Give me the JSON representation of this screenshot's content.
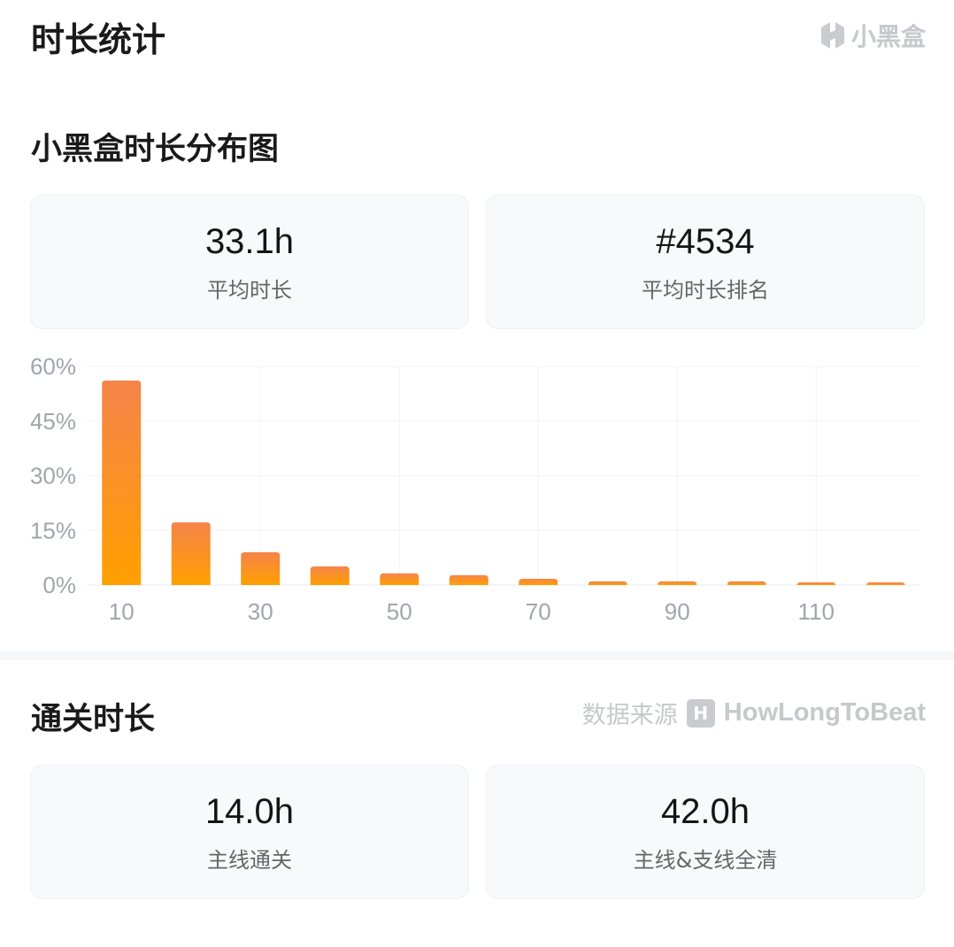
{
  "header": {
    "title": "时长统计",
    "brand": "小黑盒"
  },
  "distribution": {
    "title": "小黑盒时长分布图",
    "stats": [
      {
        "value": "33.1h",
        "label": "平均时长"
      },
      {
        "value": "#4534",
        "label": "平均时长排名"
      }
    ]
  },
  "completion": {
    "title": "通关时长",
    "source_label": "数据来源",
    "source_name": "HowLongToBeat",
    "stats": [
      {
        "value": "14.0h",
        "label": "主线通关"
      },
      {
        "value": "42.0h",
        "label": "主线&支线全清"
      }
    ]
  },
  "chart_data": {
    "type": "bar",
    "x": [
      10,
      20,
      30,
      40,
      50,
      60,
      70,
      80,
      90,
      100,
      110,
      120
    ],
    "values": [
      56.1,
      17.2,
      9.0,
      5.1,
      3.2,
      2.7,
      1.7,
      1.0,
      1.0,
      1.0,
      0.5,
      0.5
    ],
    "xlim": [
      5,
      125
    ],
    "ylim": [
      0,
      60
    ],
    "yticks": [
      "0%",
      "15%",
      "30%",
      "45%",
      "60%"
    ],
    "xticks": [
      "10",
      "30",
      "50",
      "70",
      "90",
      "110"
    ],
    "grid": true,
    "bar_gradient": [
      "#f5844a",
      "#ffa000"
    ]
  }
}
